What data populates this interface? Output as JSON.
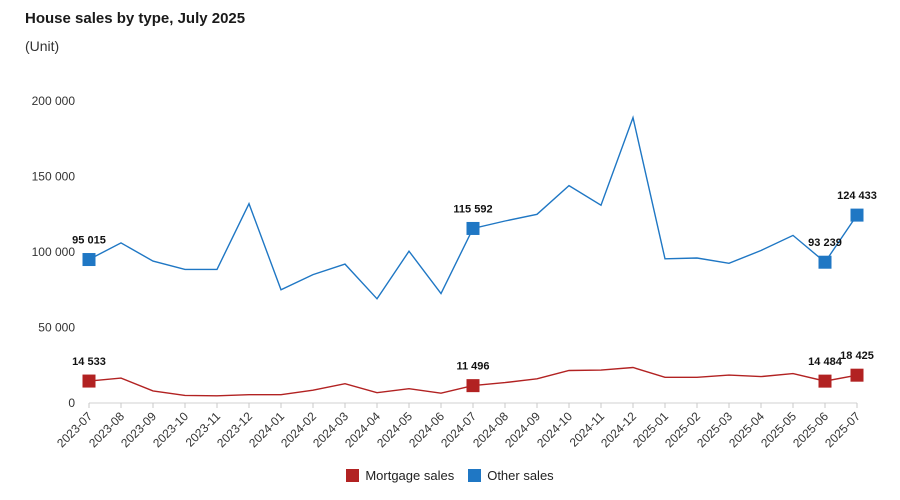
{
  "header": {
    "title": "House sales by type, July 2025",
    "subtitle": "(Unit)"
  },
  "chart_data": {
    "type": "line",
    "title": "House sales by type, July 2025",
    "subtitle": "(Unit)",
    "xlabel": "",
    "ylabel": "",
    "ylim": [
      0,
      200000
    ],
    "yticks": [
      0,
      50000,
      100000,
      150000,
      200000
    ],
    "ytick_labels": [
      "0",
      "50 000",
      "100 000",
      "150 000",
      "200 000"
    ],
    "grid": false,
    "legend_position": "bottom",
    "categories": [
      "2023-07",
      "2023-08",
      "2023-09",
      "2023-10",
      "2023-11",
      "2023-12",
      "2024-01",
      "2024-02",
      "2024-03",
      "2024-04",
      "2024-05",
      "2024-06",
      "2024-07",
      "2024-08",
      "2024-09",
      "2024-10",
      "2024-11",
      "2024-12",
      "2025-01",
      "2025-02",
      "2025-03",
      "2025-04",
      "2025-05",
      "2025-06",
      "2025-07"
    ],
    "series": [
      {
        "name": "Mortgage sales",
        "color": "#b22222",
        "values": [
          14533,
          16500,
          8000,
          5000,
          4800,
          5500,
          5500,
          8500,
          12800,
          6800,
          9500,
          6500,
          11496,
          13500,
          16000,
          21500,
          21800,
          23500,
          17000,
          17000,
          18500,
          17500,
          19500,
          14484,
          18425
        ],
        "labeled_points": [
          {
            "index": 0,
            "label": "14 533"
          },
          {
            "index": 12,
            "label": "11 496"
          },
          {
            "index": 23,
            "label": "14 484"
          },
          {
            "index": 24,
            "label": "18 425"
          }
        ]
      },
      {
        "name": "Other sales",
        "color": "#1f77c4",
        "values": [
          95015,
          106000,
          94000,
          88500,
          88500,
          132000,
          75000,
          85000,
          92000,
          69000,
          100500,
          72500,
          115592,
          120500,
          125000,
          144000,
          131000,
          189000,
          95500,
          96000,
          92500,
          101000,
          111000,
          93239,
          124433
        ],
        "labeled_points": [
          {
            "index": 0,
            "label": "95 015"
          },
          {
            "index": 12,
            "label": "115 592"
          },
          {
            "index": 23,
            "label": "93 239"
          },
          {
            "index": 24,
            "label": "124 433"
          }
        ]
      }
    ]
  }
}
